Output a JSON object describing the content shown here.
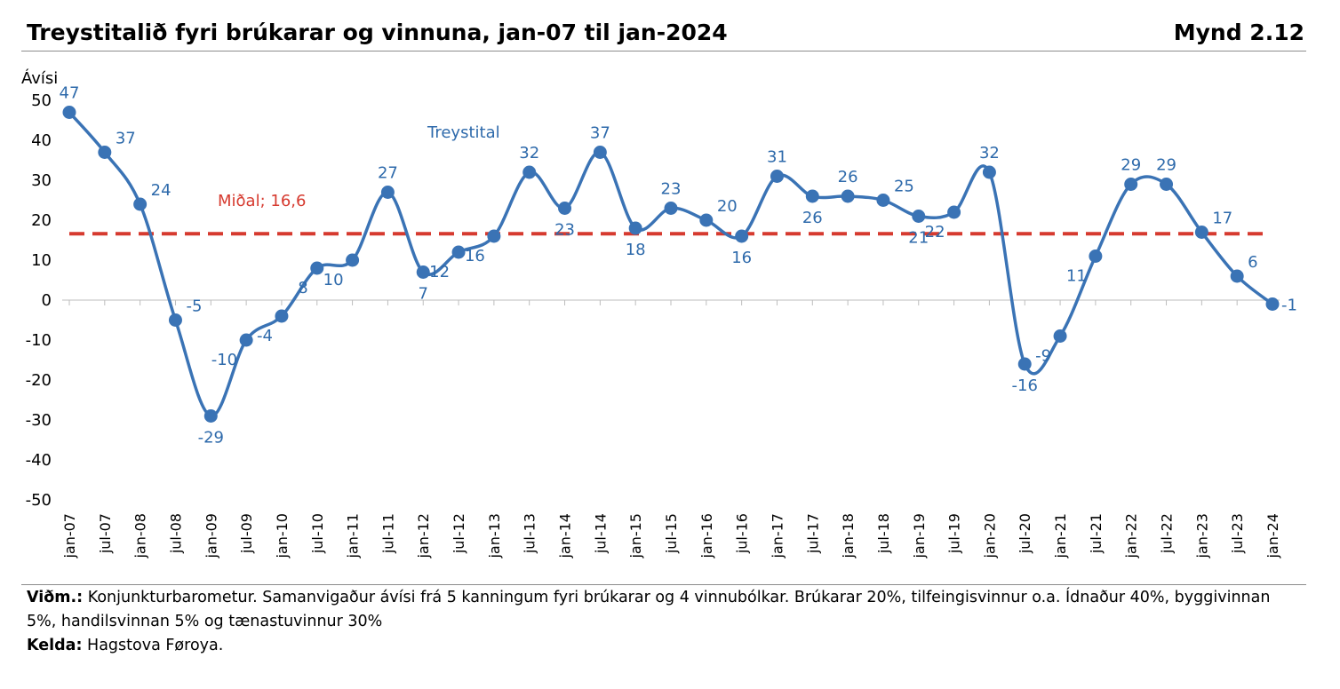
{
  "header": {
    "title": "Treystitalið fyri brúkarar og vinnuna, jan-07 til jan-2024",
    "figure_number": "Mynd 2.12"
  },
  "footer": {
    "note_label": "Viðm.:",
    "note_text": "Konjunkturbarometur. Samanvigaður ávísi frá 5 kanningum fyri brúkarar og 4 vinnubólkar. Brúkarar 20%, tilfeingisvinnur o.a. Ídnaður 40%, byggivinnan 5%, handilsvinnan 5% og tænastuvinnur 30%",
    "source_label": "Kelda:",
    "source_text": "Hagstova Føroya."
  },
  "colors": {
    "series": "#3a73b5",
    "label": "#2e6aab",
    "average": "#d63a2f"
  },
  "chart_data": {
    "type": "line",
    "ylabel": "Ávísi",
    "ylim": [
      -50,
      50
    ],
    "yticks": [
      50,
      40,
      30,
      20,
      10,
      0,
      -10,
      -20,
      -30,
      -40,
      -50
    ],
    "categories": [
      "jan-07",
      "jul-07",
      "jan-08",
      "jul-08",
      "jan-09",
      "jul-09",
      "jan-10",
      "jul-10",
      "jan-11",
      "jul-11",
      "jan-12",
      "jul-12",
      "jan-13",
      "jul-13",
      "jan-14",
      "jul-14",
      "jan-15",
      "jul-15",
      "jan-16",
      "jul-16",
      "jan-17",
      "jul-17",
      "jan-18",
      "jul-18",
      "jan-19",
      "jul-19",
      "jan-20",
      "jul-20",
      "jan-21",
      "jul-21",
      "jan-22",
      "jul-22",
      "jan-23",
      "jul-23",
      "jan-24"
    ],
    "series": [
      {
        "name": "Treystital",
        "values": [
          47,
          37,
          24,
          -5,
          -29,
          -10,
          -4,
          8,
          10,
          27,
          7,
          12,
          16,
          32,
          23,
          37,
          18,
          23,
          20,
          16,
          31,
          26,
          26,
          25,
          21,
          22,
          32,
          -16,
          -9,
          11,
          29,
          29,
          17,
          6,
          -1
        ]
      }
    ],
    "reference_line": {
      "label": "Miðal; 16,6",
      "value": 16.6
    },
    "grid": false,
    "legend": "none"
  }
}
